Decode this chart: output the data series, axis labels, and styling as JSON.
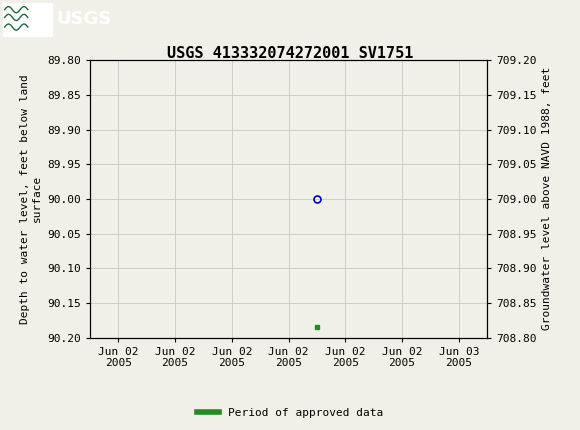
{
  "title": "USGS 413332074272001 SV1751",
  "ylabel_left": "Depth to water level, feet below land\nsurface",
  "ylabel_right": "Groundwater level above NAVD 1988, feet",
  "ylim_left_top": 89.8,
  "ylim_left_bottom": 90.2,
  "ylim_right_top": 709.2,
  "ylim_right_bottom": 708.8,
  "yticks_left": [
    89.8,
    89.85,
    89.9,
    89.95,
    90.0,
    90.05,
    90.1,
    90.15,
    90.2
  ],
  "yticks_right": [
    709.2,
    709.15,
    709.1,
    709.05,
    709.0,
    708.95,
    708.9,
    708.85,
    708.8
  ],
  "data_point_x_numeric": 4.0,
  "data_point_y": 90.0,
  "data_point_color": "#0000bb",
  "green_square_x_numeric": 4.0,
  "green_square_y": 90.185,
  "green_square_color": "#228B22",
  "header_color": "#1a6b3c",
  "background_color": "#f0f0e8",
  "plot_bg_color": "#f0f0e8",
  "grid_color": "#c8c8c8",
  "legend_label": "Period of approved data",
  "legend_color": "#228B22",
  "title_fontsize": 11,
  "axis_fontsize": 8,
  "tick_fontsize": 8,
  "xlim": [
    0,
    7
  ],
  "xtick_positions": [
    0.5,
    1.5,
    2.5,
    3.5,
    4.5,
    5.5,
    6.5
  ],
  "xtick_labels": [
    "Jun 02\n2005",
    "Jun 02\n2005",
    "Jun 02\n2005",
    "Jun 02\n2005",
    "Jun 02\n2005",
    "Jun 02\n2005",
    "Jun 03\n2005"
  ]
}
